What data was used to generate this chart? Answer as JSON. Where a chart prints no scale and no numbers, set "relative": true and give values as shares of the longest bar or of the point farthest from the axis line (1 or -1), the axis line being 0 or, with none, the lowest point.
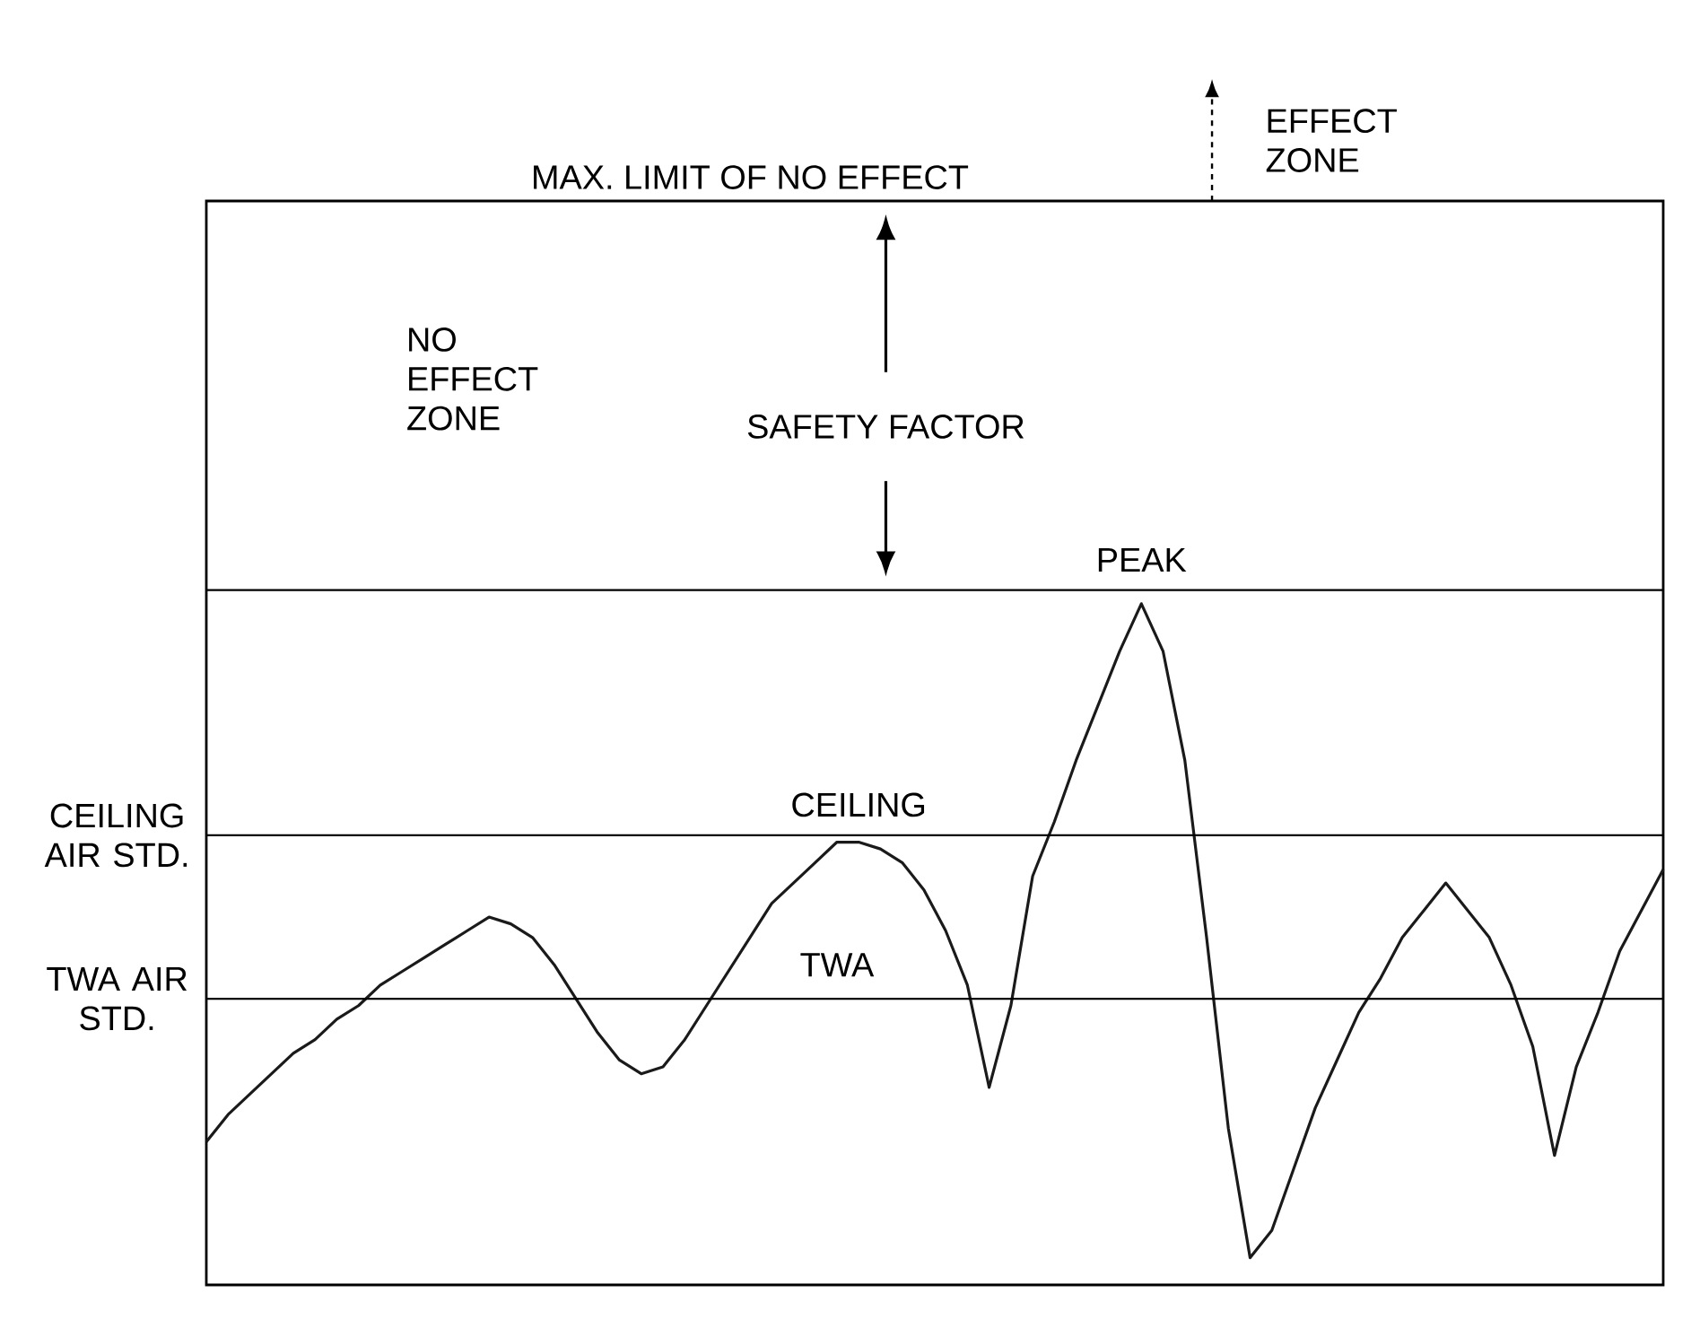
{
  "chart_data": {
    "type": "line",
    "relative": true,
    "categories": [
      null,
      null,
      null,
      null,
      null,
      null,
      null,
      null,
      null,
      null,
      null,
      null,
      null,
      null,
      null,
      null,
      null,
      null,
      null,
      null,
      null,
      null,
      null,
      null,
      null,
      null,
      null,
      null,
      null,
      null,
      null,
      null,
      null,
      null,
      null,
      null,
      null,
      null,
      null,
      null,
      null,
      null,
      null,
      null,
      null,
      null,
      null,
      null,
      null,
      null,
      null,
      null,
      null,
      null,
      null,
      null,
      null,
      null,
      null,
      null,
      null,
      null,
      null,
      null,
      null,
      null,
      null,
      null
    ],
    "series": [
      {
        "color": "#1a1a1a",
        "values": [
          0.21,
          0.25,
          0.28,
          0.31,
          0.34,
          0.36,
          0.39,
          0.41,
          0.44,
          0.46,
          0.48,
          0.5,
          0.52,
          0.54,
          0.53,
          0.51,
          0.47,
          0.42,
          0.37,
          0.33,
          0.31,
          0.32,
          0.36,
          0.41,
          0.46,
          0.51,
          0.56,
          0.59,
          0.62,
          0.65,
          0.65,
          0.64,
          0.62,
          0.58,
          0.52,
          0.44,
          0.29,
          0.41,
          0.6,
          0.68,
          0.77,
          0.85,
          0.93,
          1,
          0.93,
          0.77,
          0.51,
          0.23,
          0.04,
          0.08,
          0.17,
          0.26,
          0.33,
          0.4,
          0.45,
          0.51,
          0.55,
          0.59,
          0.55,
          0.51,
          0.44,
          0.35,
          0.19,
          0.32,
          0.4,
          0.49,
          0.55,
          0.61
        ]
      }
    ],
    "ref_lines": [
      {
        "axis": "y",
        "value": 1.02
      },
      {
        "axis": "y",
        "value": 0.66,
        "label": "CEILING AIR STD."
      },
      {
        "axis": "y",
        "value": 0.42,
        "label": "TWA AIR STD."
      }
    ],
    "annotations": [
      "MAX. LIMIT OF NO EFFECT",
      "NO EFFECT ZONE",
      "SAFETY FACTOR",
      "PEAK",
      "CEILING",
      "TWA",
      "EFFECT ZONE"
    ]
  }
}
